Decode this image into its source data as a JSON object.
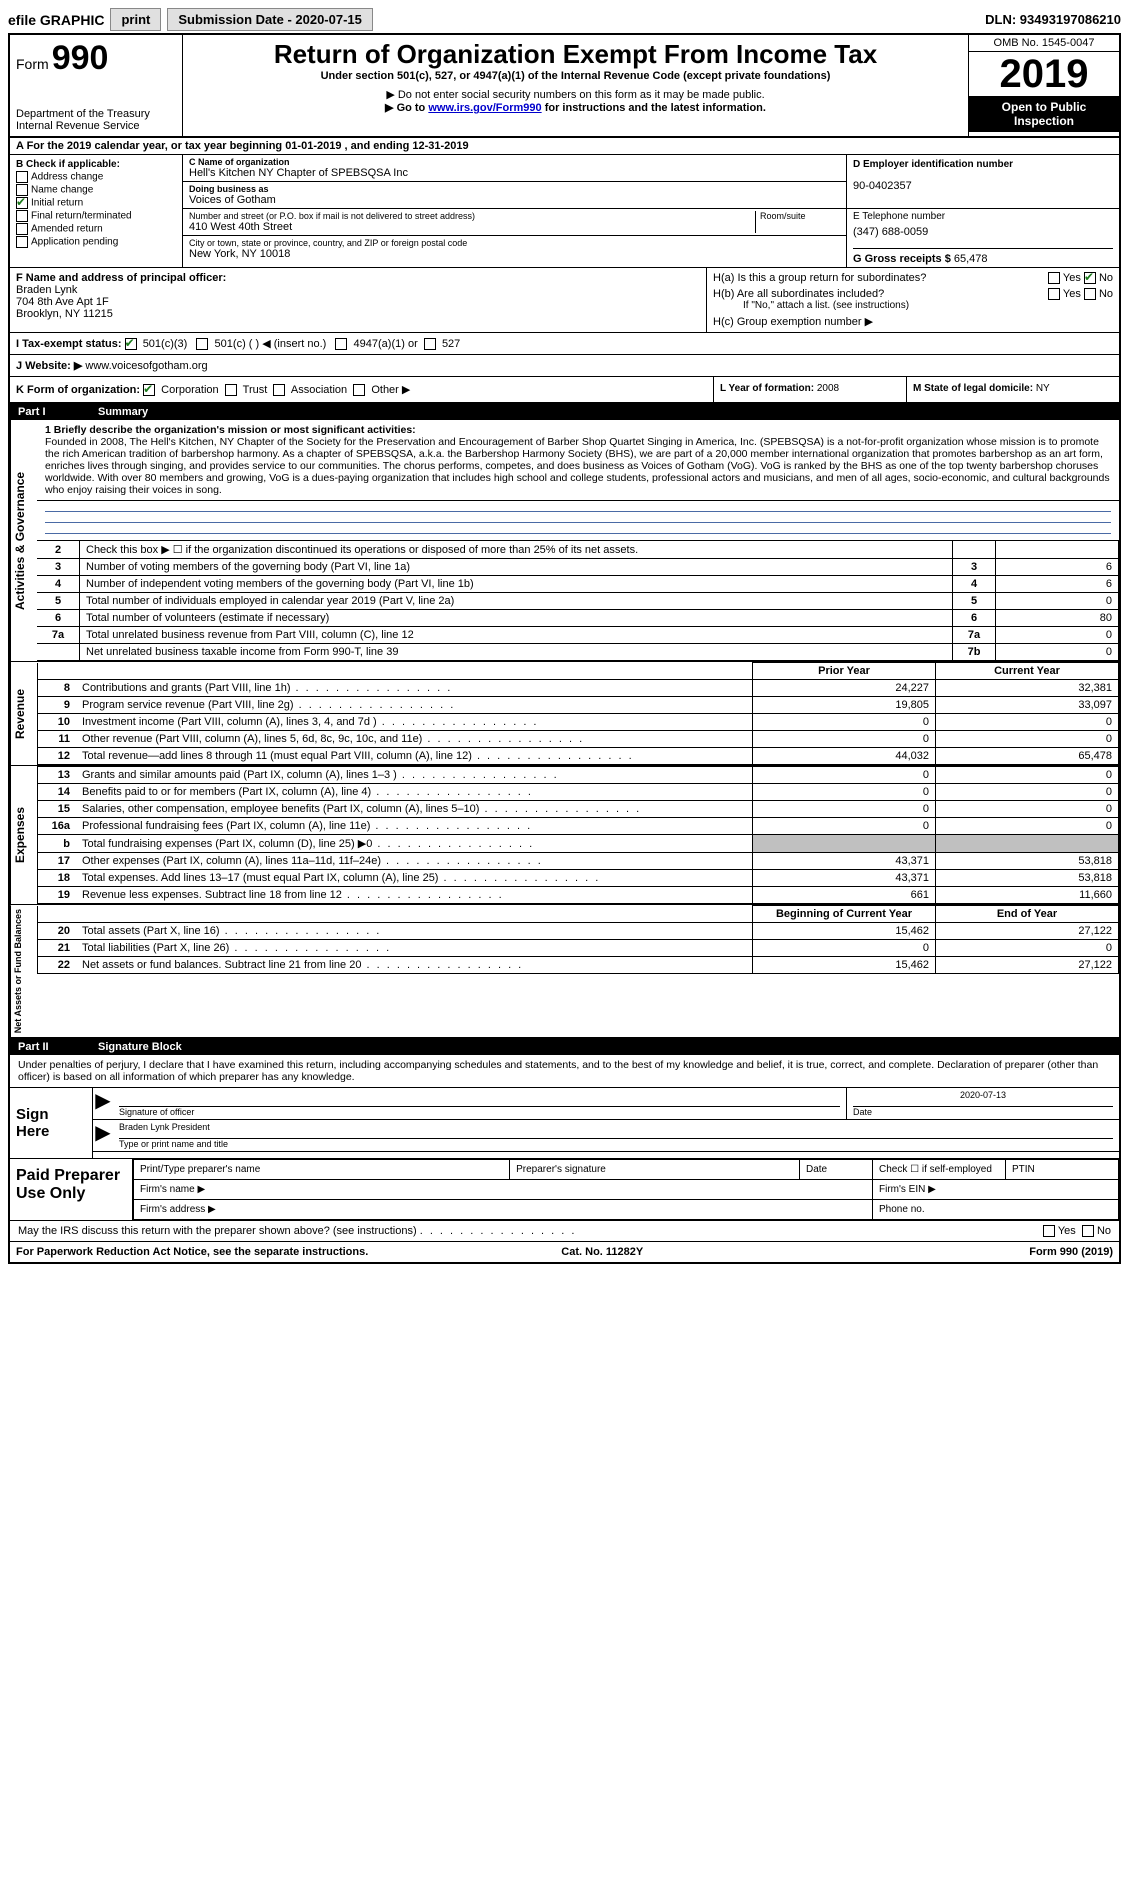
{
  "top": {
    "efile": "efile GRAPHIC",
    "print": "print",
    "submission_label": "Submission Date - 2020-07-15",
    "dln": "DLN: 93493197086210"
  },
  "header": {
    "form_prefix": "Form",
    "form_no": "990",
    "dept": "Department of the Treasury\nInternal Revenue Service",
    "title": "Return of Organization Exempt From Income Tax",
    "sub1": "Under section 501(c), 527, or 4947(a)(1) of the Internal Revenue Code (except private foundations)",
    "sub2": "▶ Do not enter social security numbers on this form as it may be made public.",
    "sub3_pre": "▶ Go to ",
    "sub3_link": "www.irs.gov/Form990",
    "sub3_post": " for instructions and the latest information.",
    "omb": "OMB No. 1545-0047",
    "year": "2019",
    "open": "Open to Public Inspection"
  },
  "period": {
    "line": "A For the 2019 calendar year, or tax year beginning 01-01-2019   , and ending 12-31-2019"
  },
  "b": {
    "title": "B Check if applicable:",
    "address_change": "Address change",
    "name_change": "Name change",
    "initial_return": "Initial return",
    "final_return": "Final return/terminated",
    "amended": "Amended return",
    "application": "Application pending"
  },
  "c": {
    "name_lbl": "C Name of organization",
    "name": "Hell's Kitchen NY Chapter of SPEBSQSA Inc",
    "dba_lbl": "Doing business as",
    "dba": "Voices of Gotham",
    "addr_lbl": "Number and street (or P.O. box if mail is not delivered to street address)",
    "addr": "410 West 40th Street",
    "room_lbl": "Room/suite",
    "city_lbl": "City or town, state or province, country, and ZIP or foreign postal code",
    "city": "New York, NY  10018"
  },
  "d": {
    "lbl": "D Employer identification number",
    "val": "90-0402357"
  },
  "e": {
    "lbl": "E Telephone number",
    "val": "(347) 688-0059"
  },
  "g": {
    "lbl": "G Gross receipts $",
    "val": "65,478"
  },
  "f": {
    "lbl": "F Name and address of principal officer:",
    "name": "Braden Lynk",
    "addr1": "704 8th Ave Apt 1F",
    "addr2": "Brooklyn, NY  11215"
  },
  "h": {
    "a_lbl": "H(a)  Is this a group return for subordinates?",
    "a_yes": "Yes",
    "a_no": "No",
    "b_lbl": "H(b)  Are all subordinates included?",
    "b_yes": "Yes",
    "b_no": "No",
    "b_note": "If \"No,\" attach a list. (see instructions)",
    "c_lbl": "H(c)  Group exemption number ▶"
  },
  "i": {
    "lbl": "I   Tax-exempt status:",
    "c3": "501(c)(3)",
    "c": "501(c) (  ) ◀ (insert no.)",
    "a1": "4947(a)(1) or",
    "s527": "527"
  },
  "j": {
    "lbl": "J  Website: ▶",
    "val": "www.voicesofgotham.org"
  },
  "k": {
    "lbl": "K Form of organization:",
    "corp": "Corporation",
    "trust": "Trust",
    "assoc": "Association",
    "other": "Other ▶"
  },
  "l": {
    "lbl": "L Year of formation:",
    "val": "2008"
  },
  "m": {
    "lbl": "M State of legal domicile:",
    "val": "NY"
  },
  "part1": {
    "num": "Part I",
    "title": "Summary"
  },
  "mission": {
    "lbl": "1  Briefly describe the organization's mission or most significant activities:",
    "text": "Founded in 2008, The Hell's Kitchen, NY Chapter of the Society for the Preservation and Encouragement of Barber Shop Quartet Singing in America, Inc. (SPEBSQSA) is a not-for-profit organization whose mission is to promote the rich American tradition of barbershop harmony. As a chapter of SPEBSQSA, a.k.a. the Barbershop Harmony Society (BHS), we are part of a 20,000 member international organization that promotes barbershop as an art form, enriches lives through singing, and provides service to our communities. The chorus performs, competes, and does business as Voices of Gotham (VoG). VoG is ranked by the BHS as one of the top twenty barbershop choruses worldwide. With over 80 members and growing, VoG is a dues-paying organization that includes high school and college students, professional actors and musicians, and men of all ages, socio-economic, and cultural backgrounds who enjoy raising their voices in song."
  },
  "lines_gov": [
    {
      "n": "2",
      "desc": "Check this box ▶ ☐ if the organization discontinued its operations or disposed of more than 25% of its net assets.",
      "box": "",
      "val": ""
    },
    {
      "n": "3",
      "desc": "Number of voting members of the governing body (Part VI, line 1a)",
      "box": "3",
      "val": "6"
    },
    {
      "n": "4",
      "desc": "Number of independent voting members of the governing body (Part VI, line 1b)",
      "box": "4",
      "val": "6"
    },
    {
      "n": "5",
      "desc": "Total number of individuals employed in calendar year 2019 (Part V, line 2a)",
      "box": "5",
      "val": "0"
    },
    {
      "n": "6",
      "desc": "Total number of volunteers (estimate if necessary)",
      "box": "6",
      "val": "80"
    },
    {
      "n": "7a",
      "desc": "Total unrelated business revenue from Part VIII, column (C), line 12",
      "box": "7a",
      "val": "0"
    },
    {
      "n": "",
      "desc": "Net unrelated business taxable income from Form 990-T, line 39",
      "box": "7b",
      "val": "0"
    }
  ],
  "fin_headers": {
    "prior": "Prior Year",
    "current": "Current Year",
    "boy": "Beginning of Current Year",
    "eoy": "End of Year"
  },
  "revenue": [
    {
      "n": "8",
      "desc": "Contributions and grants (Part VIII, line 1h)",
      "p": "24,227",
      "c": "32,381"
    },
    {
      "n": "9",
      "desc": "Program service revenue (Part VIII, line 2g)",
      "p": "19,805",
      "c": "33,097"
    },
    {
      "n": "10",
      "desc": "Investment income (Part VIII, column (A), lines 3, 4, and 7d )",
      "p": "0",
      "c": "0"
    },
    {
      "n": "11",
      "desc": "Other revenue (Part VIII, column (A), lines 5, 6d, 8c, 9c, 10c, and 11e)",
      "p": "0",
      "c": "0"
    },
    {
      "n": "12",
      "desc": "Total revenue—add lines 8 through 11 (must equal Part VIII, column (A), line 12)",
      "p": "44,032",
      "c": "65,478"
    }
  ],
  "expenses": [
    {
      "n": "13",
      "desc": "Grants and similar amounts paid (Part IX, column (A), lines 1–3 )",
      "p": "0",
      "c": "0"
    },
    {
      "n": "14",
      "desc": "Benefits paid to or for members (Part IX, column (A), line 4)",
      "p": "0",
      "c": "0"
    },
    {
      "n": "15",
      "desc": "Salaries, other compensation, employee benefits (Part IX, column (A), lines 5–10)",
      "p": "0",
      "c": "0"
    },
    {
      "n": "16a",
      "desc": "Professional fundraising fees (Part IX, column (A), line 11e)",
      "p": "0",
      "c": "0"
    },
    {
      "n": "b",
      "desc": "Total fundraising expenses (Part IX, column (D), line 25) ▶0",
      "p": "",
      "c": "",
      "grey": true
    },
    {
      "n": "17",
      "desc": "Other expenses (Part IX, column (A), lines 11a–11d, 11f–24e)",
      "p": "43,371",
      "c": "53,818"
    },
    {
      "n": "18",
      "desc": "Total expenses. Add lines 13–17 (must equal Part IX, column (A), line 25)",
      "p": "43,371",
      "c": "53,818"
    },
    {
      "n": "19",
      "desc": "Revenue less expenses. Subtract line 18 from line 12",
      "p": "661",
      "c": "11,660"
    }
  ],
  "netassets": [
    {
      "n": "20",
      "desc": "Total assets (Part X, line 16)",
      "p": "15,462",
      "c": "27,122"
    },
    {
      "n": "21",
      "desc": "Total liabilities (Part X, line 26)",
      "p": "0",
      "c": "0"
    },
    {
      "n": "22",
      "desc": "Net assets or fund balances. Subtract line 21 from line 20",
      "p": "15,462",
      "c": "27,122"
    }
  ],
  "side_labels": {
    "gov": "Activities & Governance",
    "rev": "Revenue",
    "exp": "Expenses",
    "net": "Net Assets or Fund Balances"
  },
  "part2": {
    "num": "Part II",
    "title": "Signature Block"
  },
  "sig": {
    "perjury": "Under penalties of perjury, I declare that I have examined this return, including accompanying schedules and statements, and to the best of my knowledge and belief, it is true, correct, and complete. Declaration of preparer (other than officer) is based on all information of which preparer has any knowledge.",
    "sign_here": "Sign Here",
    "sig_officer": "Signature of officer",
    "date_lbl": "Date",
    "date_val": "2020-07-13",
    "officer_name": "Braden Lynk  President",
    "type_lbl": "Type or print name and title"
  },
  "prep": {
    "title": "Paid Preparer Use Only",
    "print_name": "Print/Type preparer's name",
    "prep_sig": "Preparer's signature",
    "date": "Date",
    "check": "Check ☐ if self-employed",
    "ptin": "PTIN",
    "firm_name": "Firm's name   ▶",
    "firm_ein": "Firm's EIN ▶",
    "firm_addr": "Firm's address ▶",
    "phone": "Phone no."
  },
  "footer": {
    "discuss": "May the IRS discuss this return with the preparer shown above? (see instructions)",
    "yes": "Yes",
    "no": "No",
    "paperwork": "For Paperwork Reduction Act Notice, see the separate instructions.",
    "cat": "Cat. No. 11282Y",
    "form": "Form 990 (2019)"
  }
}
